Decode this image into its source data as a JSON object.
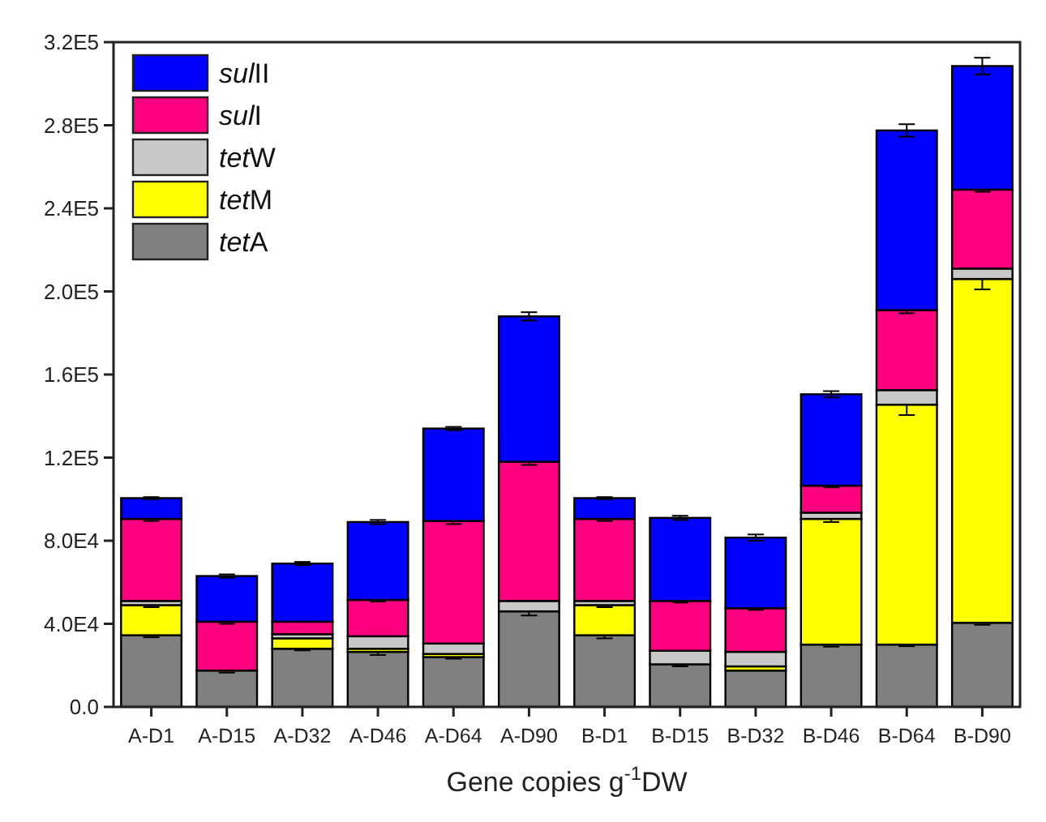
{
  "chart_data": {
    "type": "bar",
    "stacked": true,
    "xlabel": "Gene copies g$^{-1}$DW",
    "categories": [
      "A-D1",
      "A-D15",
      "A-D32",
      "A-D46",
      "A-D64",
      "A-D90",
      "B-D1",
      "B-D15",
      "B-D32",
      "B-D46",
      "B-D64",
      "B-D90"
    ],
    "series": [
      {
        "name": "tetA",
        "color": "#808080",
        "values": [
          34500,
          17500,
          28000,
          26500,
          24000,
          46000,
          34500,
          20500,
          17500,
          30000,
          30000,
          40500
        ],
        "errors": [
          1000,
          1000,
          800,
          1500,
          800,
          2000,
          1500,
          1000,
          null,
          1000,
          800,
          1000
        ]
      },
      {
        "name": "tetM",
        "color": "#ffff00",
        "values": [
          14500,
          null,
          5000,
          1500,
          1500,
          0,
          14500,
          0,
          2000,
          60500,
          115500,
          165500
        ],
        "errors": [
          1000,
          null,
          null,
          null,
          null,
          null,
          1000,
          null,
          null,
          1500,
          5000,
          5000
        ]
      },
      {
        "name": "tetW",
        "color": "#c8c8c8",
        "values": [
          2000,
          null,
          2000,
          6000,
          5000,
          5000,
          2000,
          6500,
          7000,
          3000,
          7000,
          5000
        ]
      },
      {
        "name": "sulI",
        "color": "#ff0080",
        "values": [
          39500,
          23500,
          6000,
          17500,
          59000,
          67000,
          39500,
          24000,
          21000,
          13000,
          38500,
          38000
        ],
        "errors": [
          1000,
          1000,
          null,
          800,
          1500,
          1500,
          1000,
          800,
          800,
          800,
          1500,
          1000
        ]
      },
      {
        "name": "sulII",
        "color": "#0000ff",
        "values": [
          10000,
          22000,
          28000,
          37500,
          44500,
          70000,
          10000,
          40000,
          34000,
          44000,
          86500,
          59500
        ],
        "errors": [
          500,
          800,
          800,
          1000,
          800,
          2000,
          500,
          1000,
          1500,
          1500,
          3000,
          4000
        ]
      }
    ],
    "ylim": [
      0,
      320000
    ],
    "yticks": [
      {
        "value": 0,
        "label": "0.0"
      },
      {
        "value": 40000,
        "label": "4.0E4"
      },
      {
        "value": 80000,
        "label": "8.0E4"
      },
      {
        "value": 120000,
        "label": "1.2E5"
      },
      {
        "value": 160000,
        "label": "1.6E5"
      },
      {
        "value": 200000,
        "label": "2.0E5"
      },
      {
        "value": 240000,
        "label": "2.4E5"
      },
      {
        "value": 280000,
        "label": "2.8E5"
      },
      {
        "value": 320000,
        "label": "3.2E5"
      }
    ],
    "grid": false,
    "legend": "top left"
  }
}
